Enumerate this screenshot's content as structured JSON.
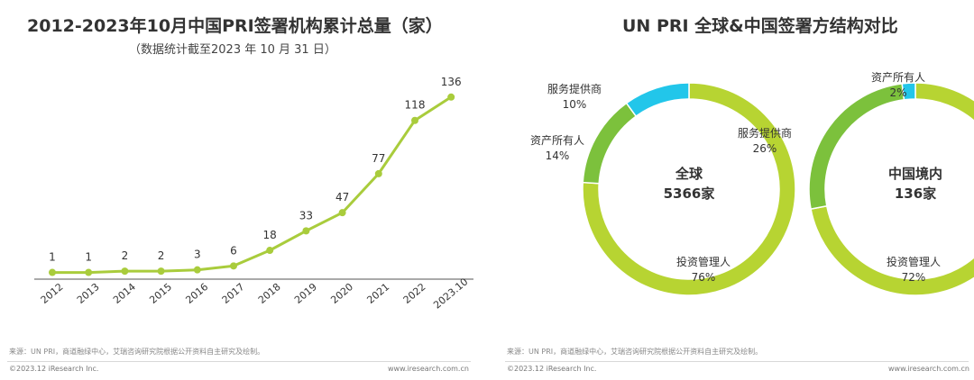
{
  "left": {
    "title": "2012-2023年10月中国PRI签署机构累计总量（家）",
    "subtitle": "（数据统计截至2023 年 10 月 31 日）",
    "source": "来源：UN PRI，商道融绿中心，艾瑞咨询研究院根据公开资料自主研究及绘制。",
    "copyright": "©2023.12 iResearch Inc.",
    "website": "www.iresearch.com.cn"
  },
  "right": {
    "title": "UN PRI 全球&中国签署方结构对比",
    "source": "来源：UN PRI，商道融绿中心，艾瑞咨询研究院根据公开资料自主研究及绘制。",
    "copyright": "©2023.12 iResearch Inc.",
    "website": "www.iresearch.com.cn"
  },
  "colors": {
    "line": "#a9cc3c",
    "axis": "#555555",
    "investment_manager": "#b7d432",
    "asset_owner": "#7cc13c",
    "service_provider": "#22c6ea"
  },
  "chart_data": [
    {
      "type": "line",
      "title": "2012-2023年10月中国PRI签署机构累计总量（家）",
      "subtitle": "（数据统计截至2023 年 10 月 31 日）",
      "categories": [
        "2012",
        "2013",
        "2014",
        "2015",
        "2016",
        "2017",
        "2018",
        "2019",
        "2020",
        "2021",
        "2022",
        "2023.10"
      ],
      "values": [
        1,
        1,
        2,
        2,
        3,
        6,
        18,
        33,
        47,
        77,
        118,
        136
      ],
      "ylim": [
        0,
        140
      ],
      "grid": false,
      "legend": "none"
    },
    {
      "type": "pie",
      "title": "UN PRI 全球&中国签署方结构对比",
      "donuts": [
        {
          "center_label": "全球",
          "center_value": "5366家",
          "slices": [
            {
              "label": "投资管理人",
              "pct": "76%",
              "value": 76,
              "color_key": "investment_manager"
            },
            {
              "label": "资产所有人",
              "pct": "14%",
              "value": 14,
              "color_key": "asset_owner"
            },
            {
              "label": "服务提供商",
              "pct": "10%",
              "value": 10,
              "color_key": "service_provider"
            }
          ]
        },
        {
          "center_label": "中国境内",
          "center_value": "136家",
          "slices": [
            {
              "label": "投资管理人",
              "pct": "72%",
              "value": 72,
              "color_key": "investment_manager"
            },
            {
              "label": "服务提供商",
              "pct": "26%",
              "value": 26,
              "color_key": "asset_owner"
            },
            {
              "label": "资产所有人",
              "pct": "2%",
              "value": 2,
              "color_key": "service_provider"
            }
          ]
        }
      ]
    }
  ]
}
